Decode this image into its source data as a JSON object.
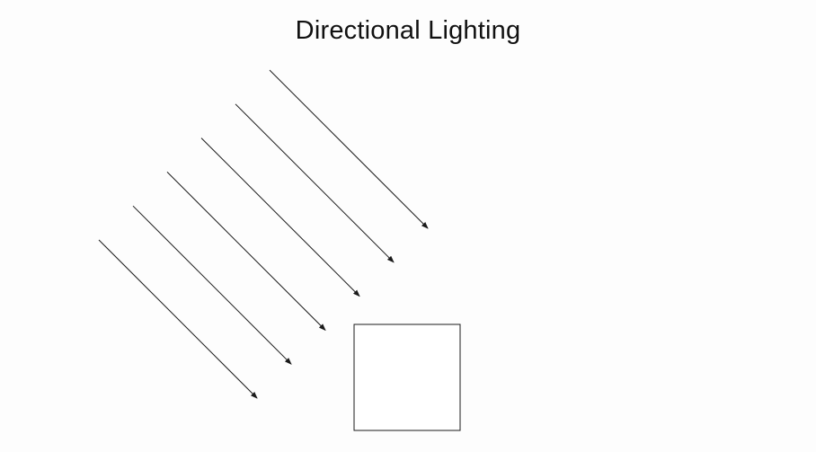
{
  "title": "Directional Lighting",
  "light_ray_count": 6,
  "colors": {
    "background": "#fdfdfd",
    "line": "#1a1a1a",
    "title_text": "#111111"
  }
}
